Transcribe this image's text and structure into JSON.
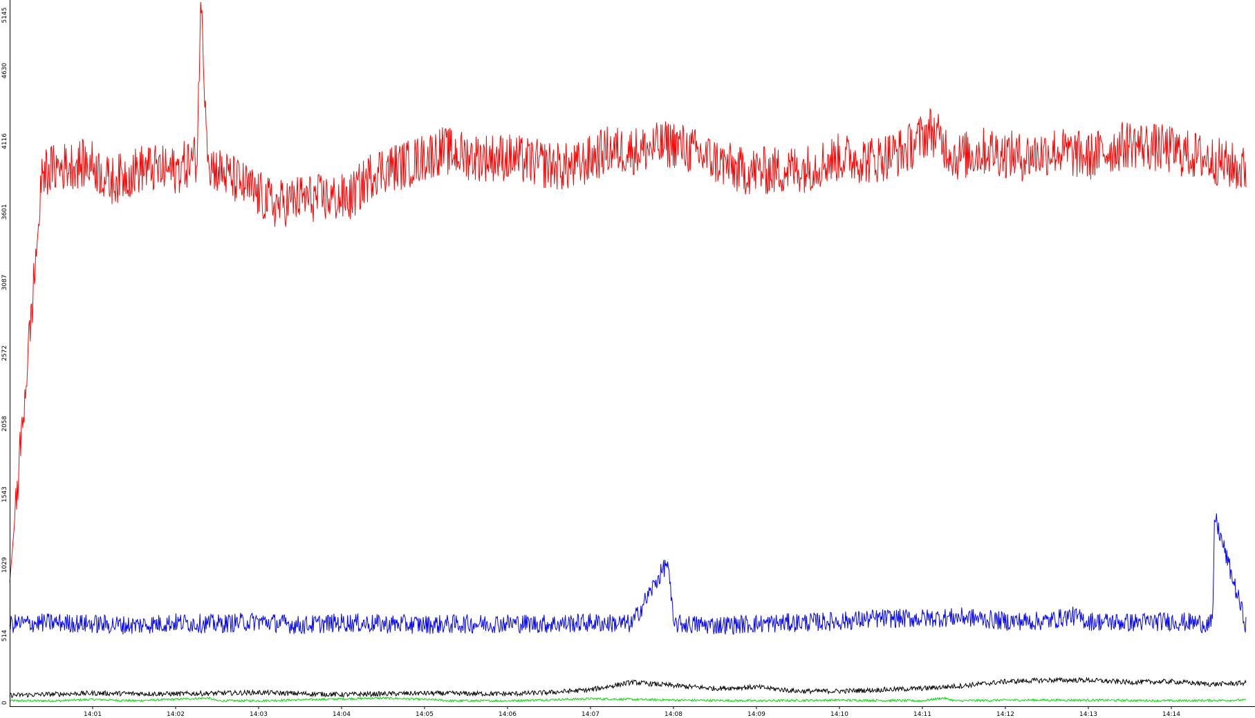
{
  "chart_data": {
    "type": "line",
    "title": "",
    "xlabel": "",
    "ylabel": "",
    "ylim": [
      0,
      5145
    ],
    "y_ticks": [
      "0",
      "514",
      "1029",
      "1543",
      "2058",
      "2572",
      "3087",
      "3601",
      "4116",
      "4630",
      "5145"
    ],
    "x_ticks": [
      "14:01",
      "14:02",
      "14:03",
      "14:04",
      "14:05",
      "14:06",
      "14:07",
      "14:08",
      "14:09",
      "14:10",
      "14:11",
      "14:12",
      "14:13",
      "14:14"
    ],
    "xlim_minutes": [
      0,
      15
    ],
    "grid": false,
    "legend": "none",
    "series": [
      {
        "color": "#ff0000",
        "x": [
          0,
          0.4,
          0.8,
          1.0,
          1.2,
          1.6,
          2.0,
          2.26,
          2.3,
          2.4,
          2.8,
          3.2,
          3.5,
          3.8,
          4.1,
          4.4,
          4.8,
          5.2,
          5.6,
          6.0,
          6.4,
          6.8,
          7.2,
          7.6,
          8.0,
          8.4,
          8.8,
          9.2,
          9.6,
          10.0,
          10.4,
          10.8,
          11.1,
          11.4,
          11.8,
          12.2,
          12.6,
          13.0,
          13.5,
          14.0,
          14.5,
          14.9
        ],
        "y": [
          900,
          3900,
          3950,
          3950,
          3820,
          3920,
          3900,
          4000,
          5145,
          3950,
          3800,
          3650,
          3700,
          3700,
          3700,
          3900,
          3950,
          4050,
          4000,
          4000,
          3950,
          3920,
          4050,
          4050,
          4100,
          4000,
          3900,
          3900,
          3920,
          4000,
          3980,
          4050,
          4200,
          4000,
          4050,
          4000,
          4050,
          4000,
          4100,
          4050,
          3980,
          3900
        ]
      },
      {
        "color": "#0000ff",
        "x": [
          0,
          0.5,
          1.0,
          1.5,
          2.0,
          2.5,
          3.0,
          3.5,
          4.0,
          4.5,
          5.0,
          5.5,
          6.0,
          6.5,
          7.0,
          7.5,
          7.93,
          8.0,
          8.5,
          9.0,
          9.5,
          10.0,
          10.5,
          11.0,
          11.5,
          12.0,
          12.5,
          12.8,
          13.0,
          13.5,
          14.0,
          14.5,
          14.52,
          14.9
        ],
        "y": [
          600,
          610,
          600,
          590,
          610,
          600,
          620,
          590,
          610,
          600,
          595,
          600,
          605,
          600,
          610,
          600,
          1055,
          600,
          590,
          600,
          610,
          620,
          640,
          640,
          650,
          620,
          620,
          660,
          620,
          610,
          620,
          600,
          1390,
          590
        ]
      },
      {
        "color": "#000000",
        "x": [
          0,
          1.0,
          2.0,
          3.0,
          4.0,
          5.0,
          6.0,
          6.5,
          7.0,
          7.5,
          8.0,
          8.5,
          9.0,
          9.5,
          10.0,
          10.5,
          11.0,
          11.5,
          12.0,
          12.5,
          13.0,
          13.5,
          14.0,
          14.5,
          14.9
        ],
        "y": [
          80,
          95,
          90,
          100,
          85,
          95,
          90,
          100,
          120,
          175,
          150,
          130,
          140,
          110,
          110,
          120,
          130,
          150,
          180,
          190,
          190,
          175,
          180,
          160,
          170
        ]
      },
      {
        "color": "#00dd00",
        "x": [
          0,
          0.6,
          1.0,
          1.5,
          2.4,
          2.5,
          3.0,
          4.5,
          5.2,
          5.3,
          6.0,
          7.0,
          8.0,
          9.0,
          10.0,
          11.0,
          11.25,
          11.4,
          12.0,
          13.0,
          14.0,
          14.9
        ],
        "y": [
          40,
          40,
          50,
          40,
          60,
          40,
          40,
          60,
          45,
          40,
          40,
          55,
          45,
          40,
          45,
          40,
          60,
          40,
          45,
          45,
          40,
          45
        ]
      }
    ]
  }
}
